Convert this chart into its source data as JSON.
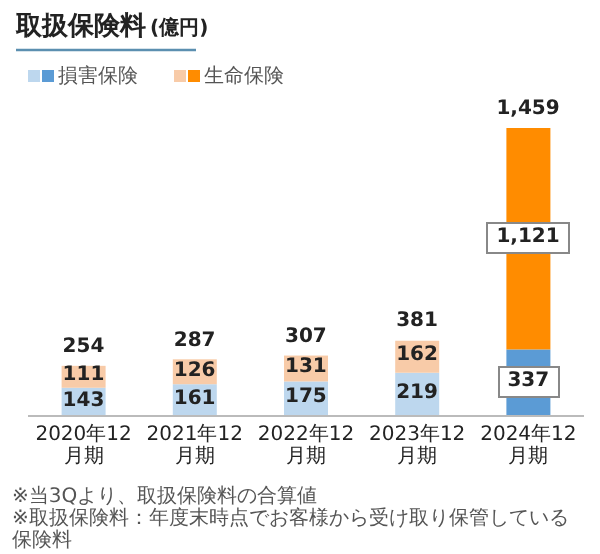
{
  "chart_data": {
    "type": "bar",
    "stacked": true,
    "title": "取扱保険料",
    "subtitle": "(億円)",
    "categories": [
      "2020年12月期",
      "2021年12月期",
      "2022年12月期",
      "2023年12月期",
      "2024年12月期"
    ],
    "series": [
      {
        "name": "損害保険",
        "color": "#5b9bd5",
        "colors": [
          "#bdd7ee",
          "#bdd7ee",
          "#bdd7ee",
          "#bdd7ee",
          "#5b9bd5"
        ],
        "values": [
          143,
          161,
          175,
          219,
          337
        ],
        "value_labels": [
          "143",
          "161",
          "175",
          "219",
          "337"
        ]
      },
      {
        "name": "生命保険",
        "color": "#ff8c00",
        "colors": [
          "#f8cba8",
          "#f8cba8",
          "#f8cba8",
          "#f8cba8",
          "#ff8c00"
        ],
        "values": [
          111,
          126,
          131,
          162,
          1121
        ],
        "value_labels": [
          "111",
          "126",
          "131",
          "162",
          "1,121"
        ]
      }
    ],
    "totals": [
      "254",
      "287",
      "307",
      "381",
      "1,459"
    ],
    "legend": "top left",
    "annotations": [
      "※当3Qより、取扱保険料の合算値",
      "※取扱保険料：年度末時点でお客様から受け取り保管している保険料"
    ]
  }
}
